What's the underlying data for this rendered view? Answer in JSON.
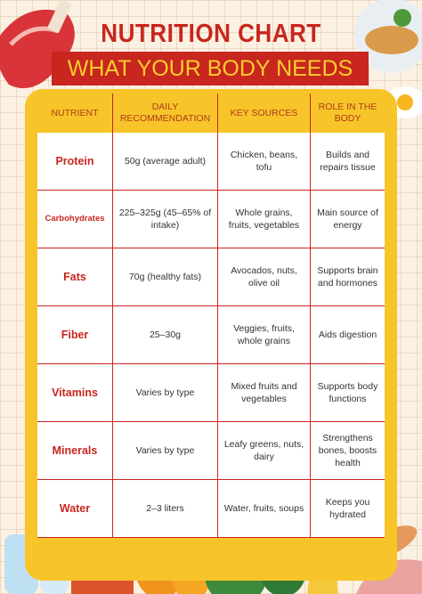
{
  "header": {
    "title": "NUTRITION CHART",
    "subtitle": "WHAT YOUR BODY NEEDS"
  },
  "table": {
    "columns": [
      "NUTRIENT",
      "DAILY RECOMMENDATION",
      "KEY SOURCES",
      "ROLE IN THE BODY"
    ],
    "rows": [
      [
        "Protein",
        "50g (average adult)",
        "Chicken, beans, tofu",
        "Builds and repairs tissue"
      ],
      [
        "Carbohydrates",
        "225–325g (45–65% of intake)",
        "Whole grains, fruits, vegetables",
        "Main source of energy"
      ],
      [
        "Fats",
        "70g (healthy fats)",
        "Avocados, nuts, olive oil",
        "Supports brain and hormones"
      ],
      [
        "Fiber",
        "25–30g",
        "Veggies, fruits, whole grains",
        "Aids digestion"
      ],
      [
        "Vitamins",
        "Varies by type",
        "Mixed fruits and vegetables",
        "Supports body functions"
      ],
      [
        "Minerals",
        "Varies by type",
        "Leafy greens, nuts, dairy",
        "Strengthens bones, boosts health"
      ],
      [
        "Water",
        "2–3 liters",
        "Water, fruits, soups",
        "Keeps you hydrated"
      ]
    ]
  }
}
